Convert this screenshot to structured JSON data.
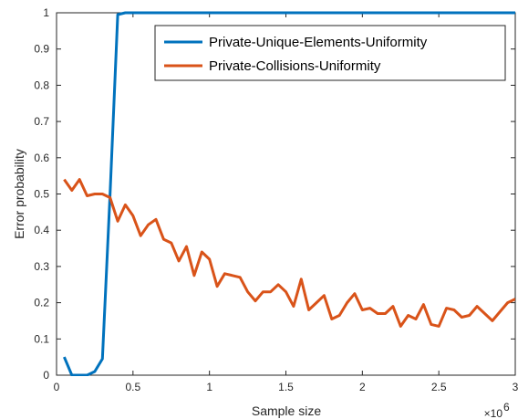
{
  "chart_data": {
    "type": "line",
    "xlabel": "Sample size",
    "ylabel": "Error probability",
    "x_exponent_label": "×10",
    "x_exponent_power": "6",
    "xlim": [
      0,
      3
    ],
    "ylim": [
      0,
      1
    ],
    "x_ticks": [
      "0",
      "0.5",
      "1",
      "1.5",
      "2",
      "2.5",
      "3"
    ],
    "y_ticks": [
      "0",
      "0.1",
      "0.2",
      "0.3",
      "0.4",
      "0.5",
      "0.6",
      "0.7",
      "0.8",
      "0.9",
      "1"
    ],
    "legend_position": "top-right",
    "grid": false,
    "series": [
      {
        "name": "Private-Unique-Elements-Uniformity",
        "color": "#0072BD",
        "x": [
          0.05,
          0.1,
          0.15,
          0.2,
          0.25,
          0.3,
          0.35,
          0.4,
          0.45,
          0.5,
          1.0,
          1.5,
          2.0,
          2.5,
          3.0
        ],
        "y": [
          0.05,
          0.0,
          0.0,
          0.0,
          0.01,
          0.045,
          0.5,
          0.995,
          1.0,
          1.0,
          1.0,
          1.0,
          1.0,
          1.0,
          1.0
        ]
      },
      {
        "name": "Private-Collisions-Uniformity",
        "color": "#D95319",
        "x": [
          0.05,
          0.1,
          0.15,
          0.2,
          0.25,
          0.3,
          0.35,
          0.4,
          0.45,
          0.5,
          0.55,
          0.6,
          0.65,
          0.7,
          0.75,
          0.8,
          0.85,
          0.9,
          0.95,
          1.0,
          1.05,
          1.1,
          1.15,
          1.2,
          1.25,
          1.3,
          1.35,
          1.4,
          1.45,
          1.5,
          1.55,
          1.6,
          1.65,
          1.7,
          1.75,
          1.8,
          1.85,
          1.9,
          1.95,
          2.0,
          2.05,
          2.1,
          2.15,
          2.2,
          2.25,
          2.3,
          2.35,
          2.4,
          2.45,
          2.5,
          2.55,
          2.6,
          2.65,
          2.7,
          2.75,
          2.8,
          2.85,
          2.9,
          2.95,
          3.0
        ],
        "y": [
          0.54,
          0.51,
          0.54,
          0.495,
          0.5,
          0.5,
          0.49,
          0.425,
          0.47,
          0.44,
          0.385,
          0.415,
          0.43,
          0.375,
          0.365,
          0.315,
          0.355,
          0.275,
          0.34,
          0.32,
          0.245,
          0.28,
          0.275,
          0.27,
          0.23,
          0.205,
          0.23,
          0.23,
          0.25,
          0.23,
          0.19,
          0.265,
          0.18,
          0.2,
          0.22,
          0.155,
          0.165,
          0.2,
          0.225,
          0.18,
          0.185,
          0.17,
          0.17,
          0.19,
          0.135,
          0.165,
          0.155,
          0.195,
          0.14,
          0.135,
          0.185,
          0.18,
          0.16,
          0.165,
          0.19,
          0.17,
          0.15,
          0.175,
          0.2,
          0.21
        ]
      }
    ]
  }
}
